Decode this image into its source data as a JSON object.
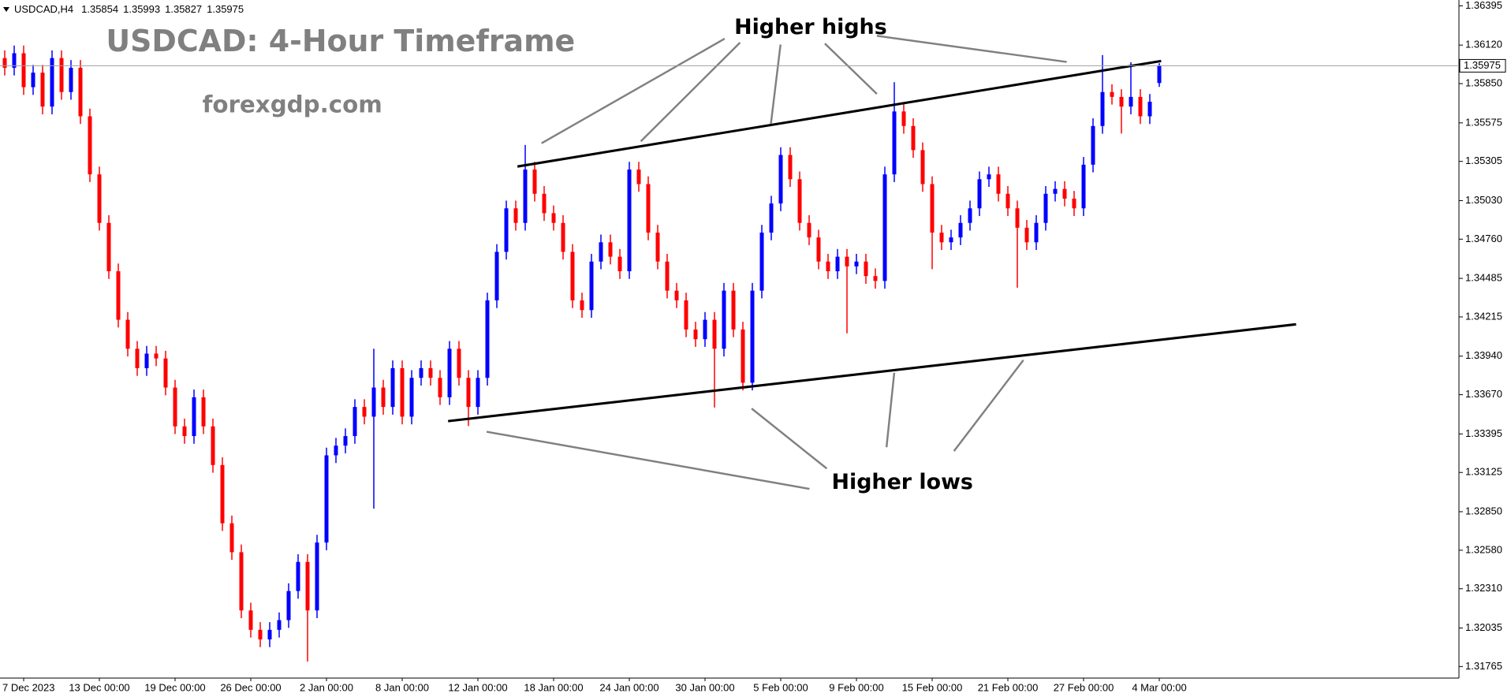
{
  "chart_data": {
    "type": "candlestick",
    "symbol": "USDCAD,H4",
    "title": "USDCAD: 4-Hour Timeframe",
    "subtitle": "forexgdp.com",
    "annotations": [
      "Higher highs",
      "Higher lows"
    ],
    "up_color": "#0000ff",
    "down_color": "#ff0000",
    "ylim": [
      1.31684,
      1.36436
    ],
    "yticks": [
      1.36395,
      {
        "value": 1.3612,
        "label": "1.36120"
      },
      {
        "value": 1.3585,
        "label": "1.35850"
      },
      1.35575,
      1.35305,
      {
        "value": 1.3503,
        "label": "1.35030"
      },
      {
        "value": 1.3476,
        "label": "1.34760"
      },
      1.34485,
      1.34215,
      {
        "value": 1.3394,
        "label": "1.33940"
      },
      {
        "value": 1.3367,
        "label": "1.33670"
      },
      1.33395,
      1.33125,
      {
        "value": 1.3285,
        "label": "1.32850"
      },
      {
        "value": 1.3258,
        "label": "1.32580"
      },
      {
        "value": 1.3231,
        "label": "1.32310"
      },
      1.32035,
      1.31765
    ],
    "categories": [
      null,
      null,
      "7 Dec 2023",
      null,
      null,
      null,
      null,
      null,
      null,
      null,
      "13 Dec 00:00",
      null,
      null,
      null,
      null,
      null,
      null,
      null,
      "19 Dec 00:00",
      null,
      null,
      null,
      null,
      null,
      null,
      null,
      "26 Dec 00:00",
      null,
      null,
      null,
      null,
      null,
      null,
      null,
      "2 Jan 00:00",
      null,
      null,
      null,
      null,
      null,
      null,
      null,
      "8 Jan 00:00",
      null,
      null,
      null,
      null,
      null,
      null,
      null,
      "12 Jan 00:00",
      null,
      null,
      null,
      null,
      null,
      null,
      null,
      "18 Jan 00:00",
      null,
      null,
      null,
      null,
      null,
      null,
      null,
      "24 Jan 00:00",
      null,
      null,
      null,
      null,
      null,
      null,
      null,
      "30 Jan 00:00",
      null,
      null,
      null,
      null,
      null,
      null,
      null,
      "5 Feb 00:00",
      null,
      null,
      null,
      null,
      null,
      null,
      null,
      "9 Feb 00:00",
      null,
      null,
      null,
      null,
      null,
      null,
      null,
      "15 Feb 00:00",
      null,
      null,
      null,
      null,
      null,
      null,
      null,
      "21 Feb 00:00",
      null,
      null,
      null,
      null,
      null,
      null,
      null,
      "27 Feb 00:00",
      null,
      null,
      null,
      null,
      null,
      null,
      null,
      "4 Mar 00:00"
    ],
    "ohlc": [
      [
        1.36029,
        1.36083,
        1.35907,
        1.35961
      ],
      [
        1.35961,
        1.36117,
        1.35907,
        1.36063
      ],
      [
        1.36063,
        1.36117,
        1.35771,
        1.35825
      ],
      [
        1.35825,
        1.35981,
        1.35771,
        1.35927
      ],
      [
        1.35927,
        1.35981,
        1.35635,
        1.35689
      ],
      [
        1.35689,
        1.36083,
        1.35635,
        1.36029
      ],
      [
        1.36029,
        1.36083,
        1.35737,
        1.35791
      ],
      [
        1.35791,
        1.36015,
        1.35737,
        1.35961
      ],
      [
        1.35961,
        1.36015,
        1.35567,
        1.35621
      ],
      [
        1.35621,
        1.35675,
        1.3516,
        1.35214
      ],
      [
        1.35214,
        1.35268,
        1.3482,
        1.34874
      ],
      [
        1.34874,
        1.34928,
        1.34481,
        1.34535
      ],
      [
        1.34535,
        1.34589,
        1.34141,
        1.34195
      ],
      [
        1.34195,
        1.34249,
        1.33938,
        1.33992
      ],
      [
        1.33992,
        1.34046,
        1.33802,
        1.33856
      ],
      [
        1.33856,
        1.34012,
        1.33802,
        1.33958
      ],
      [
        1.33958,
        1.34012,
        1.3387,
        1.33924
      ],
      [
        1.33924,
        1.33978,
        1.33666,
        1.3372
      ],
      [
        1.3372,
        1.33774,
        1.33394,
        1.33448
      ],
      [
        1.33448,
        1.33502,
        1.33326,
        1.3338
      ],
      [
        1.3338,
        1.33706,
        1.33326,
        1.33652
      ],
      [
        1.33652,
        1.33706,
        1.33394,
        1.33448
      ],
      [
        1.33448,
        1.33502,
        1.33123,
        1.33177
      ],
      [
        1.33177,
        1.33231,
        1.32715,
        1.32769
      ],
      [
        1.32769,
        1.32823,
        1.32512,
        1.32566
      ],
      [
        1.32566,
        1.3262,
        1.32104,
        1.32158
      ],
      [
        1.32158,
        1.32212,
        1.31968,
        1.32022
      ],
      [
        1.32022,
        1.32076,
        1.31901,
        1.31955
      ],
      [
        1.31955,
        1.32076,
        1.31901,
        1.32022
      ],
      [
        1.32022,
        1.32144,
        1.31968,
        1.3209
      ],
      [
        1.3209,
        1.32348,
        1.32036,
        1.32294
      ],
      [
        1.32294,
        1.32552,
        1.3224,
        1.32498
      ],
      [
        1.32498,
        1.32552,
        1.318,
        1.32158
      ],
      [
        1.32158,
        1.32688,
        1.32104,
        1.32634
      ],
      [
        1.32634,
        1.33299,
        1.3258,
        1.33245
      ],
      [
        1.33245,
        1.33367,
        1.33191,
        1.33313
      ],
      [
        1.33313,
        1.33434,
        1.33259,
        1.3338
      ],
      [
        1.3338,
        1.33638,
        1.33326,
        1.33584
      ],
      [
        1.33584,
        1.33638,
        1.33462,
        1.33516
      ],
      [
        1.33516,
        1.33992,
        1.32871,
        1.3372
      ],
      [
        1.3372,
        1.33774,
        1.3353,
        1.33584
      ],
      [
        1.33584,
        1.3391,
        1.3353,
        1.33856
      ],
      [
        1.33856,
        1.3391,
        1.33462,
        1.33516
      ],
      [
        1.33516,
        1.33842,
        1.33462,
        1.33788
      ],
      [
        1.33788,
        1.3391,
        1.33734,
        1.33856
      ],
      [
        1.33856,
        1.3391,
        1.33734,
        1.33788
      ],
      [
        1.33788,
        1.33842,
        1.33598,
        1.33652
      ],
      [
        1.33652,
        1.34046,
        1.33598,
        1.33992
      ],
      [
        1.33992,
        1.34046,
        1.33734,
        1.33788
      ],
      [
        1.33788,
        1.33842,
        1.3345,
        1.33584
      ],
      [
        1.33584,
        1.33842,
        1.3353,
        1.33788
      ],
      [
        1.33788,
        1.34385,
        1.33734,
        1.34331
      ],
      [
        1.34331,
        1.34725,
        1.34277,
        1.34671
      ],
      [
        1.34671,
        1.3503,
        1.34617,
        1.34976
      ],
      [
        1.34976,
        1.3503,
        1.3482,
        1.34874
      ],
      [
        1.34874,
        1.3542,
        1.3482,
        1.35248
      ],
      [
        1.35248,
        1.35302,
        1.35024,
        1.35078
      ],
      [
        1.35078,
        1.35132,
        1.34888,
        1.34942
      ],
      [
        1.34942,
        1.34996,
        1.3482,
        1.34874
      ],
      [
        1.34874,
        1.34928,
        1.34617,
        1.34671
      ],
      [
        1.34671,
        1.34725,
        1.34277,
        1.34331
      ],
      [
        1.34331,
        1.34385,
        1.34209,
        1.34263
      ],
      [
        1.34263,
        1.34657,
        1.34209,
        1.34603
      ],
      [
        1.34603,
        1.34792,
        1.34549,
        1.34738
      ],
      [
        1.34738,
        1.34792,
        1.34583,
        1.34637
      ],
      [
        1.34637,
        1.34691,
        1.34481,
        1.34535
      ],
      [
        1.34535,
        1.35302,
        1.34481,
        1.35248
      ],
      [
        1.35248,
        1.35302,
        1.35092,
        1.35146
      ],
      [
        1.35146,
        1.352,
        1.34752,
        1.34806
      ],
      [
        1.34806,
        1.3486,
        1.34549,
        1.34603
      ],
      [
        1.34603,
        1.34657,
        1.34345,
        1.34399
      ],
      [
        1.34399,
        1.34453,
        1.34277,
        1.34331
      ],
      [
        1.34331,
        1.34385,
        1.34073,
        1.34127
      ],
      [
        1.34127,
        1.34181,
        1.34005,
        1.34059
      ],
      [
        1.34059,
        1.34249,
        1.34005,
        1.34195
      ],
      [
        1.34195,
        1.34249,
        1.3358,
        1.33992
      ],
      [
        1.33992,
        1.34453,
        1.33938,
        1.34399
      ],
      [
        1.34399,
        1.34453,
        1.34073,
        1.34127
      ],
      [
        1.34127,
        1.34181,
        1.337,
        1.33754
      ],
      [
        1.33754,
        1.34453,
        1.337,
        1.34399
      ],
      [
        1.34399,
        1.3486,
        1.34345,
        1.34806
      ],
      [
        1.34806,
        1.35064,
        1.34752,
        1.3501
      ],
      [
        1.3501,
        1.35404,
        1.34956,
        1.3535
      ],
      [
        1.3535,
        1.35404,
        1.35126,
        1.3518
      ],
      [
        1.3518,
        1.35234,
        1.3482,
        1.34874
      ],
      [
        1.34874,
        1.34928,
        1.34718,
        1.34772
      ],
      [
        1.34772,
        1.34826,
        1.34549,
        1.34603
      ],
      [
        1.34603,
        1.34657,
        1.34481,
        1.34535
      ],
      [
        1.34535,
        1.34691,
        1.34481,
        1.34637
      ],
      [
        1.34637,
        1.34691,
        1.341,
        1.34569
      ],
      [
        1.34569,
        1.34657,
        1.34515,
        1.34603
      ],
      [
        1.34603,
        1.34657,
        1.34447,
        1.34501
      ],
      [
        1.34501,
        1.34555,
        1.34413,
        1.34467
      ],
      [
        1.34467,
        1.35268,
        1.34413,
        1.35214
      ],
      [
        1.35214,
        1.3586,
        1.3516,
        1.35655
      ],
      [
        1.35655,
        1.35709,
        1.35499,
        1.35553
      ],
      [
        1.35553,
        1.35607,
        1.3533,
        1.35384
      ],
      [
        1.35384,
        1.35438,
        1.35092,
        1.35146
      ],
      [
        1.35146,
        1.352,
        1.3455,
        1.34806
      ],
      [
        1.34806,
        1.3486,
        1.34684,
        1.34738
      ],
      [
        1.34738,
        1.34826,
        1.34684,
        1.34772
      ],
      [
        1.34772,
        1.34928,
        1.34718,
        1.34874
      ],
      [
        1.34874,
        1.3503,
        1.3482,
        1.34976
      ],
      [
        1.34976,
        1.35234,
        1.34922,
        1.3518
      ],
      [
        1.3518,
        1.35268,
        1.35126,
        1.35214
      ],
      [
        1.35214,
        1.35268,
        1.35024,
        1.35078
      ],
      [
        1.35078,
        1.35132,
        1.34922,
        1.34976
      ],
      [
        1.34976,
        1.3503,
        1.3442,
        1.3484
      ],
      [
        1.3484,
        1.34894,
        1.34684,
        1.34738
      ],
      [
        1.34738,
        1.34928,
        1.34684,
        1.34874
      ],
      [
        1.34874,
        1.35132,
        1.3482,
        1.35078
      ],
      [
        1.35078,
        1.35166,
        1.35024,
        1.35112
      ],
      [
        1.35112,
        1.35166,
        1.3499,
        1.35044
      ],
      [
        1.35044,
        1.35098,
        1.34922,
        1.34976
      ],
      [
        1.34976,
        1.35336,
        1.34922,
        1.35282
      ],
      [
        1.35282,
        1.35607,
        1.35228,
        1.35553
      ],
      [
        1.35553,
        1.3605,
        1.35499,
        1.35791
      ],
      [
        1.35791,
        1.35845,
        1.35703,
        1.35757
      ],
      [
        1.35757,
        1.35811,
        1.355,
        1.35689
      ],
      [
        1.35689,
        1.36,
        1.35635,
        1.35757
      ],
      [
        1.35757,
        1.35811,
        1.35567,
        1.35621
      ],
      [
        1.35621,
        1.35777,
        1.35567,
        1.35723
      ],
      [
        1.35854,
        1.35993,
        1.35827,
        1.35975
      ]
    ]
  }
}
